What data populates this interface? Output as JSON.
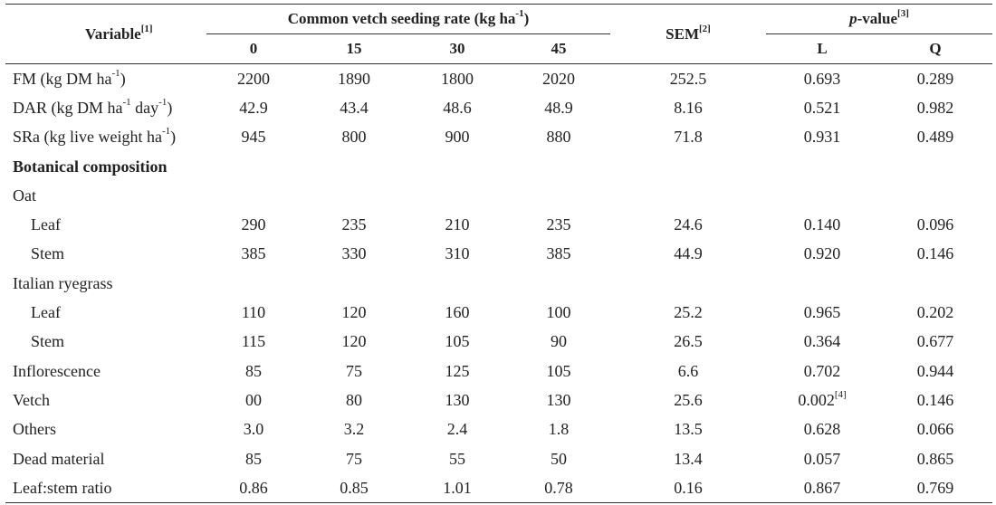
{
  "header": {
    "variable": "Variable",
    "variable_note": "[1]",
    "group_title_pre": "Common vetch seeding rate (kg ha",
    "group_title_sup": "-1",
    "group_title_post": ")",
    "rates": [
      "0",
      "15",
      "30",
      "45"
    ],
    "sem": "SEM",
    "sem_note": "[2]",
    "p_italic": "p",
    "p_rest": "-value",
    "p_note": "[3]",
    "l": "L",
    "q": "Q"
  },
  "rows": [
    {
      "label": "FM (kg DM ha",
      "sup1": "-1",
      "post1": ")",
      "sup2": "",
      "post2": "",
      "values": [
        "2200",
        "1890",
        "1800",
        "2020"
      ],
      "sem": "252.5",
      "l": "0.693",
      "q": "0.289"
    },
    {
      "label": "DAR (kg DM ha",
      "sup1": "-1",
      "post1": " day",
      "sup2": "-1",
      "post2": ")",
      "values": [
        "42.9",
        "43.4",
        "48.6",
        "48.9"
      ],
      "sem": "8.16",
      "l": "0.521",
      "q": "0.982"
    },
    {
      "label": "SRa (kg live weight ha",
      "sup1": "-1",
      "post1": ")",
      "sup2": "",
      "post2": "",
      "values": [
        "945",
        "800",
        "900",
        "880"
      ],
      "sem": "71.8",
      "l": "0.931",
      "q": "0.489"
    },
    {
      "section": "Botanical composition"
    },
    {
      "label": "Oat"
    },
    {
      "label": "Leaf",
      "indent": true,
      "values": [
        "290",
        "235",
        "210",
        "235"
      ],
      "sem": "24.6",
      "l": "0.140",
      "q": "0.096"
    },
    {
      "label": "Stem",
      "indent": true,
      "values": [
        "385",
        "330",
        "310",
        "385"
      ],
      "sem": "44.9",
      "l": "0.920",
      "q": "0.146"
    },
    {
      "label": "Italian ryegrass"
    },
    {
      "label": "Leaf",
      "indent": true,
      "values": [
        "110",
        "120",
        "160",
        "100"
      ],
      "sem": "25.2",
      "l": "0.965",
      "q": "0.202"
    },
    {
      "label": "Stem",
      "indent": true,
      "values": [
        "115",
        "120",
        "105",
        "90"
      ],
      "sem": "26.5",
      "l": "0.364",
      "q": "0.677"
    },
    {
      "label": "Inflorescence",
      "values": [
        "85",
        "75",
        "125",
        "105"
      ],
      "sem": "6.6",
      "l": "0.702",
      "q": "0.944"
    },
    {
      "label": "Vetch",
      "values": [
        "00",
        "80",
        "130",
        "130"
      ],
      "sem": "25.6",
      "l": "0.002",
      "l_note": "[4]",
      "q": "0.146"
    },
    {
      "label": "Others",
      "values": [
        "3.0",
        "3.2",
        "2.4",
        "1.8"
      ],
      "sem": "13.5",
      "l": "0.628",
      "q": "0.066"
    },
    {
      "label": "Dead material",
      "values": [
        "85",
        "75",
        "55",
        "50"
      ],
      "sem": "13.4",
      "l": "0.057",
      "q": "0.865"
    },
    {
      "label": "Leaf:stem ratio",
      "values": [
        "0.86",
        "0.85",
        "1.01",
        "0.78"
      ],
      "sem": "0.16",
      "l": "0.867",
      "q": "0.769"
    }
  ]
}
